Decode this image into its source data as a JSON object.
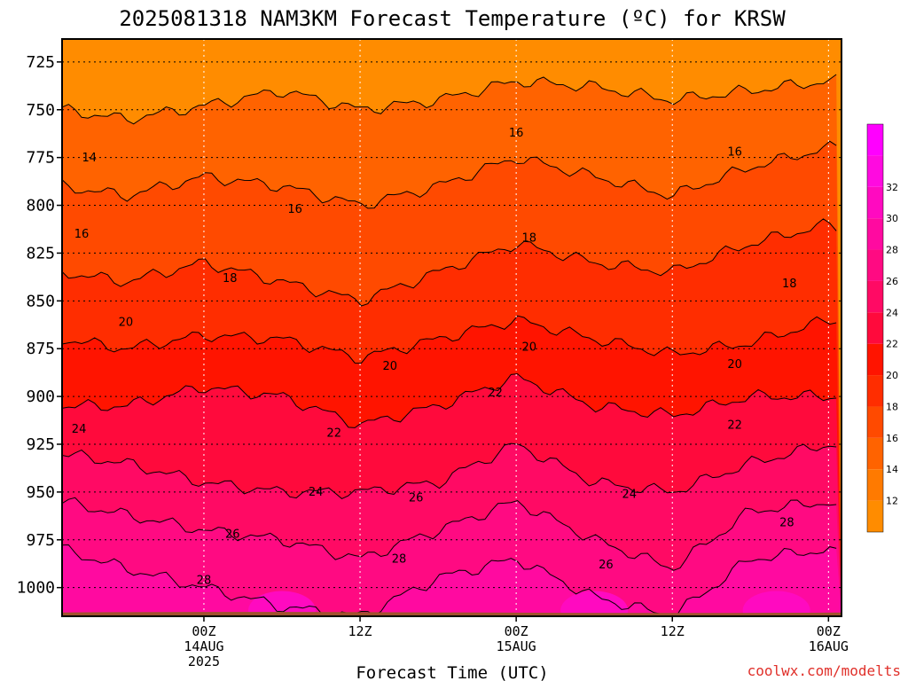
{
  "title": "2025081318 NAM3KM Forecast Temperature (ºC) for KRSW",
  "xlabel": "Forecast Time (UTC)",
  "credit": "coolwx.com/modelts",
  "chart_data": {
    "type": "heatmap",
    "title": "2025081318 NAM3KM Forecast Temperature (ºC) for KRSW",
    "xlabel": "Forecast Time (UTC)",
    "ylabel": "",
    "y_axis": {
      "ticks": [
        725,
        750,
        775,
        800,
        825,
        850,
        875,
        900,
        925,
        950,
        975,
        1000
      ],
      "range": [
        713,
        1015
      ],
      "inverted": true
    },
    "x_axis": {
      "range_hours": [
        -4.9,
        55
      ],
      "ticks": [
        {
          "hour": 6,
          "lines": [
            "00Z",
            "14AUG",
            "2025"
          ]
        },
        {
          "hour": 18,
          "lines": [
            "12Z"
          ]
        },
        {
          "hour": 30,
          "lines": [
            "00Z",
            "15AUG"
          ]
        },
        {
          "hour": 42,
          "lines": [
            "12Z"
          ]
        },
        {
          "hour": 54,
          "lines": [
            "00Z",
            "16AUG"
          ]
        }
      ]
    },
    "colorbar": {
      "ticks": [
        12,
        14,
        16,
        18,
        20,
        22,
        24,
        26,
        28,
        30,
        32
      ],
      "levels": [
        10,
        12,
        14,
        16,
        18,
        20,
        22,
        24,
        26,
        28,
        30,
        32,
        34
      ],
      "colors": [
        "#ff8c00",
        "#ff7a00",
        "#ff6300",
        "#ff4a00",
        "#ff2d00",
        "#ff1400",
        "#ff0a3c",
        "#ff0a64",
        "#ff0a82",
        "#ff0aa0",
        "#ff0ac0",
        "#ff0ae0",
        "#ff00ff"
      ]
    },
    "contour_levels": [
      14,
      16,
      18,
      20,
      22,
      24,
      26,
      28
    ],
    "isotherm_pressure_by_hour": {
      "hours": [
        -4.9,
        0,
        6,
        12,
        18,
        24,
        30,
        36,
        42,
        48,
        54,
        55
      ],
      "14": [
        750,
        755,
        748,
        740,
        750,
        745,
        735,
        738,
        745,
        740,
        735,
        735
      ],
      "16": [
        790,
        795,
        785,
        790,
        800,
        790,
        775,
        785,
        795,
        780,
        770,
        770
      ],
      "18": [
        835,
        840,
        830,
        840,
        850,
        835,
        820,
        830,
        835,
        820,
        810,
        812
      ],
      "20": [
        870,
        875,
        868,
        870,
        880,
        870,
        860,
        870,
        878,
        872,
        860,
        860
      ],
      "22": [
        905,
        905,
        895,
        900,
        915,
        905,
        890,
        905,
        910,
        900,
        900,
        900
      ],
      "24": [
        930,
        935,
        945,
        950,
        950,
        945,
        925,
        945,
        950,
        935,
        925,
        925
      ],
      "26": [
        955,
        962,
        970,
        975,
        985,
        970,
        955,
        975,
        990,
        960,
        955,
        960
      ],
      "28": [
        980,
        990,
        1000,
        1010,
        1015,
        995,
        985,
        1005,
        1015,
        985,
        980,
        985
      ]
    },
    "contour_labels": [
      {
        "value": 14,
        "hour": -2.8,
        "p": 777
      },
      {
        "value": 16,
        "hour": -3.4,
        "p": 817
      },
      {
        "value": 18,
        "hour": 8.0,
        "p": 840
      },
      {
        "value": 20,
        "hour": 0.0,
        "p": 863
      },
      {
        "value": 24,
        "hour": -3.6,
        "p": 919
      },
      {
        "value": 26,
        "hour": 8.2,
        "p": 974
      },
      {
        "value": 28,
        "hour": 6.0,
        "p": 998
      },
      {
        "value": 16,
        "hour": 13.0,
        "p": 804
      },
      {
        "value": 22,
        "hour": 16.0,
        "p": 921
      },
      {
        "value": 24,
        "hour": 14.6,
        "p": 952
      },
      {
        "value": 20,
        "hour": 20.3,
        "p": 886
      },
      {
        "value": 26,
        "hour": 22.3,
        "p": 955
      },
      {
        "value": 28,
        "hour": 21.0,
        "p": 987
      },
      {
        "value": 16,
        "hour": 30.0,
        "p": 764
      },
      {
        "value": 18,
        "hour": 31.0,
        "p": 819
      },
      {
        "value": 20,
        "hour": 31.0,
        "p": 876
      },
      {
        "value": 22,
        "hour": 28.4,
        "p": 900
      },
      {
        "value": 24,
        "hour": 38.7,
        "p": 953
      },
      {
        "value": 26,
        "hour": 36.9,
        "p": 990
      },
      {
        "value": 16,
        "hour": 46.8,
        "p": 774
      },
      {
        "value": 18,
        "hour": 51.0,
        "p": 843
      },
      {
        "value": 20,
        "hour": 46.8,
        "p": 885
      },
      {
        "value": 22,
        "hour": 46.8,
        "p": 917
      },
      {
        "value": 28,
        "hour": 50.8,
        "p": 968
      }
    ],
    "ground_color": "#a0522d"
  }
}
